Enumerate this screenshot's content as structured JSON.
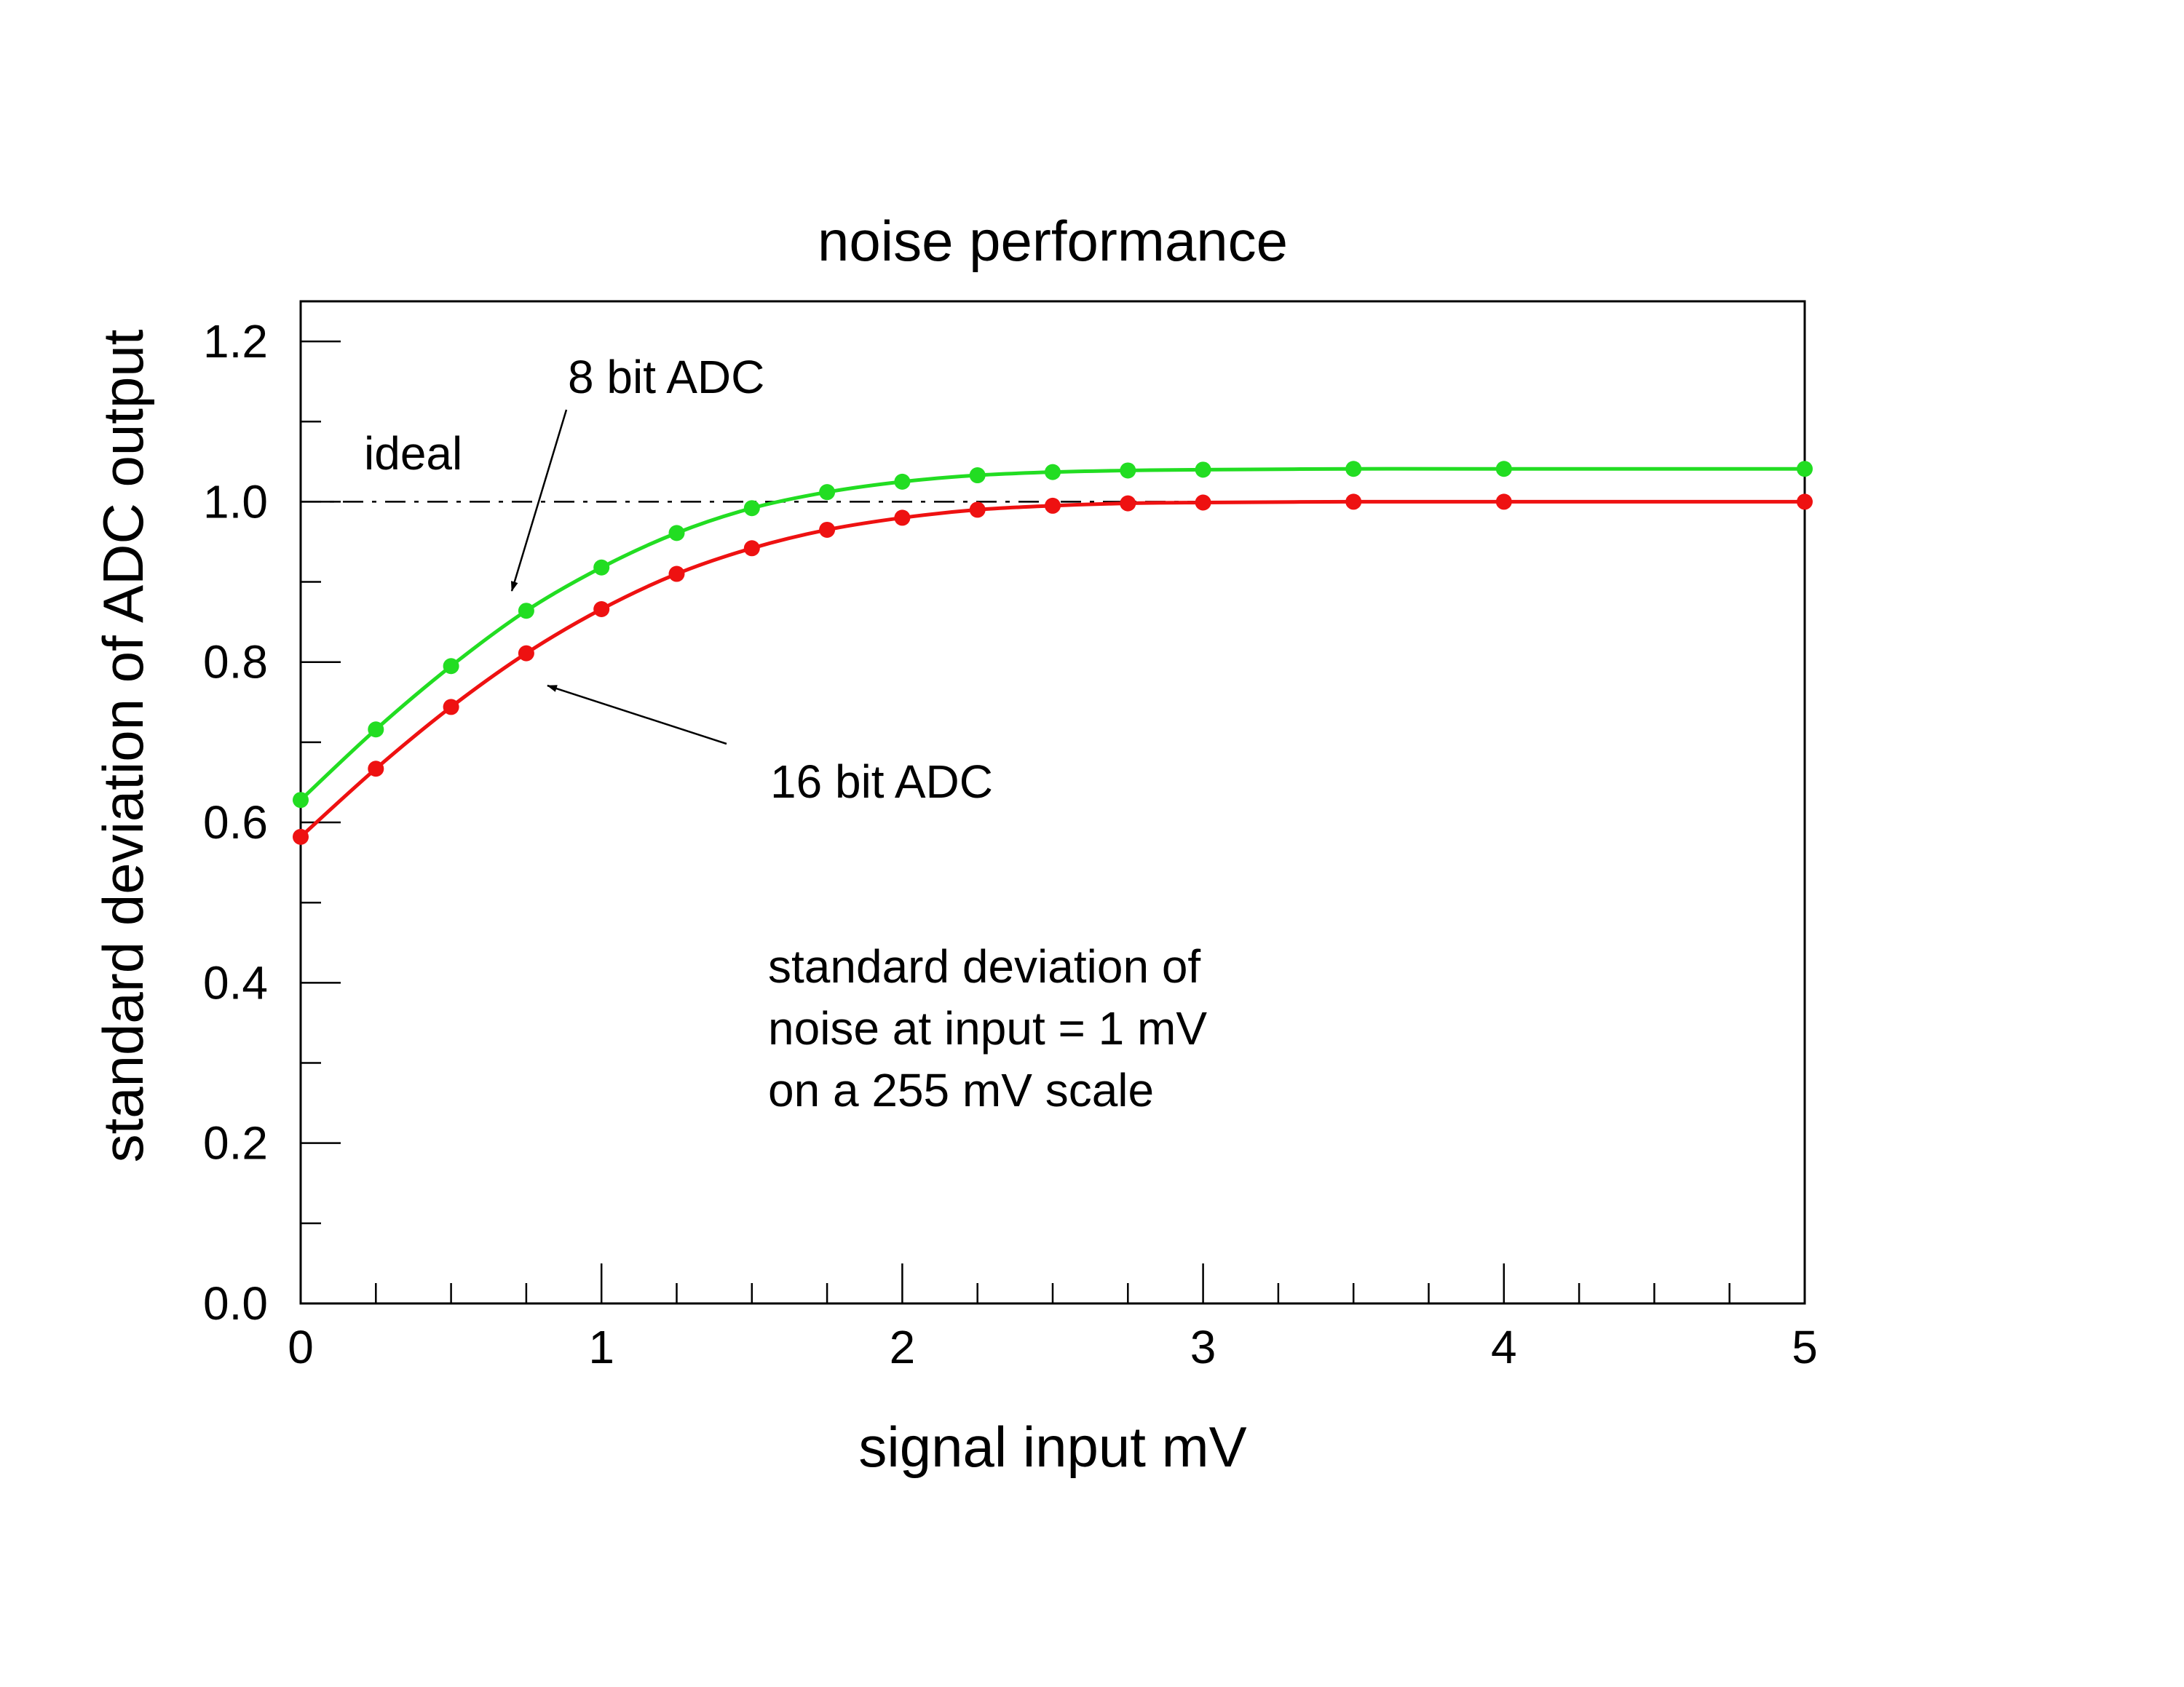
{
  "chart_data": {
    "type": "line",
    "title": "noise performance",
    "xlabel": "signal input mV",
    "ylabel": "standard deviation of ADC output",
    "xlim": [
      0,
      5
    ],
    "ylim": [
      0,
      1.25
    ],
    "x_ticks": [
      0,
      1,
      2,
      3,
      4,
      5
    ],
    "x_tick_labels": [
      "0",
      "1",
      "2",
      "3",
      "4",
      "5"
    ],
    "x_minor_step": 0.25,
    "y_ticks": [
      0,
      0.2,
      0.4,
      0.6,
      0.8,
      1.0,
      1.2
    ],
    "y_tick_labels": [
      "0.0",
      "0.2",
      "0.4",
      "0.6",
      "0.8",
      "1.0",
      "1.2"
    ],
    "y_minor_step": 0.1,
    "grid": false,
    "reference_line": {
      "y": 1.0,
      "style": "dash-dot",
      "label": "ideal"
    },
    "series": [
      {
        "name": "8 bit ADC",
        "color": "#22dd22",
        "x": [
          0,
          0.25,
          0.5,
          0.75,
          1.0,
          1.25,
          1.5,
          1.75,
          2.0,
          2.25,
          2.5,
          2.75,
          3.0,
          3.5,
          4.0,
          5.0
        ],
        "y": [
          0.628,
          0.716,
          0.795,
          0.864,
          0.918,
          0.961,
          0.992,
          1.012,
          1.025,
          1.033,
          1.037,
          1.039,
          1.04,
          1.041,
          1.041,
          1.041
        ]
      },
      {
        "name": "16 bit ADC",
        "color": "#ee1111",
        "x": [
          0,
          0.25,
          0.5,
          0.75,
          1.0,
          1.25,
          1.5,
          1.75,
          2.0,
          2.25,
          2.5,
          2.75,
          3.0,
          3.5,
          4.0,
          5.0
        ],
        "y": [
          0.582,
          0.667,
          0.744,
          0.811,
          0.866,
          0.91,
          0.942,
          0.965,
          0.98,
          0.99,
          0.995,
          0.998,
          0.999,
          1.0,
          1.0,
          1.0
        ]
      }
    ],
    "annotations": {
      "series_8bit": "8 bit ADC",
      "series_16bit": "16 bit ADC",
      "note_lines": [
        "standard deviation of",
        "noise at input = 1 mV",
        "on a 255 mV scale"
      ]
    }
  }
}
